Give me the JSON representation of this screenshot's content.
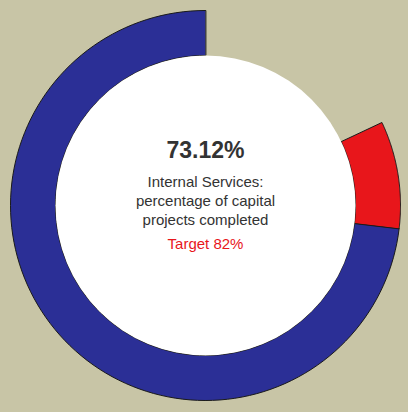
{
  "chart_data": {
    "type": "donut",
    "title": "Internal Services: percentage of capital projects completed",
    "values": [
      73.12
    ],
    "value_labels": [
      "73.12%"
    ],
    "target": 82,
    "target_label": "Target 82%",
    "colors": [
      "#2b2f96",
      "#e8161b"
    ],
    "ylim": [
      0,
      100
    ]
  }
}
